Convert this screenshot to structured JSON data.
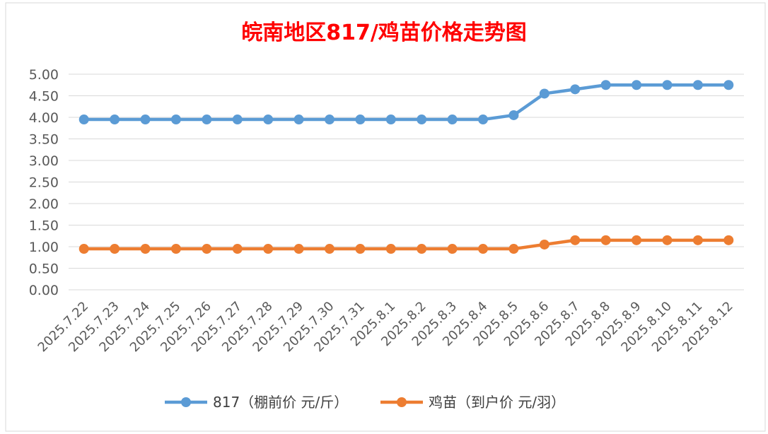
{
  "chart_data": {
    "type": "line",
    "title": "皖南地区817/鸡苗价格走势图",
    "categories": [
      "2025.7.22",
      "2025.7.23",
      "2025.7.24",
      "2025.7.25",
      "2025.7.26",
      "2025.7.27",
      "2025.7.28",
      "2025.7.29",
      "2025.7.30",
      "2025.7.31",
      "2025.8.1",
      "2025.8.2",
      "2025.8.3",
      "2025.8.4",
      "2025.8.5",
      "2025.8.6",
      "2025.8.7",
      "2025.8.8",
      "2025.8.9",
      "2025.8.10",
      "2025.8.11",
      "2025.8.12"
    ],
    "series": [
      {
        "name": "817（棚前价 元/斤）",
        "color": "#5B9BD5",
        "values": [
          3.95,
          3.95,
          3.95,
          3.95,
          3.95,
          3.95,
          3.95,
          3.95,
          3.95,
          3.95,
          3.95,
          3.95,
          3.95,
          3.95,
          4.05,
          4.55,
          4.65,
          4.75,
          4.75,
          4.75,
          4.75,
          4.75
        ]
      },
      {
        "name": "鸡苗（到户价 元/羽）",
        "color": "#ED7D31",
        "values": [
          0.95,
          0.95,
          0.95,
          0.95,
          0.95,
          0.95,
          0.95,
          0.95,
          0.95,
          0.95,
          0.95,
          0.95,
          0.95,
          0.95,
          0.95,
          1.05,
          1.15,
          1.15,
          1.15,
          1.15,
          1.15,
          1.15
        ]
      }
    ],
    "yticks": [
      "0.00",
      "0.50",
      "1.00",
      "1.50",
      "2.00",
      "2.50",
      "3.00",
      "3.50",
      "4.00",
      "4.50",
      "5.00"
    ],
    "ylim": [
      0,
      5
    ],
    "grid": true,
    "legend_position": "bottom",
    "title_color": "#FF0000"
  }
}
